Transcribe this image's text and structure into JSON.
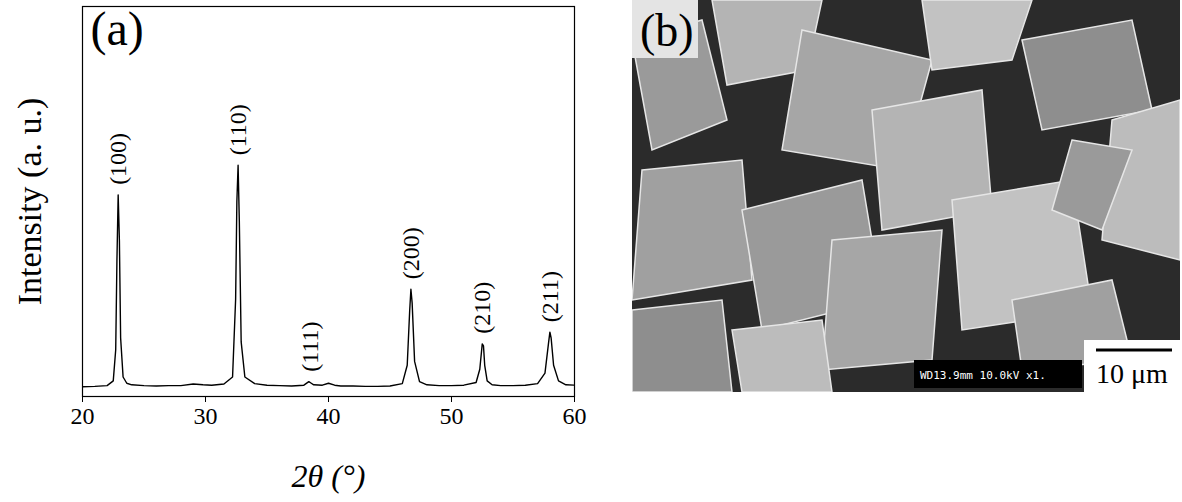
{
  "chart_data": {
    "type": "line",
    "title": "(a)",
    "x_label": "2θ (°)",
    "y_label": "Intensity (a. u.)",
    "x": [
      20,
      21,
      22,
      22.5,
      22.7,
      22.8,
      22.9,
      23.0,
      23.1,
      23.3,
      23.6,
      24,
      25,
      26,
      27,
      28,
      29,
      29.8,
      30.5,
      31.5,
      32.2,
      32.45,
      32.55,
      32.65,
      32.75,
      32.9,
      33.2,
      34,
      35,
      36,
      37,
      38,
      38.4,
      38.6,
      38.8,
      39.5,
      40,
      40.5,
      41,
      42,
      43,
      44,
      45,
      46,
      46.4,
      46.6,
      46.7,
      46.8,
      47.0,
      47.4,
      48,
      49,
      50,
      51,
      52,
      52.3,
      52.5,
      52.6,
      52.7,
      52.9,
      53.3,
      54,
      55,
      56,
      57,
      57.6,
      57.9,
      58.0,
      58.1,
      58.3,
      58.7,
      59.3,
      60
    ],
    "values": [
      2.5,
      2.6,
      2.8,
      4,
      12,
      35,
      51.7,
      40,
      15,
      5,
      3.4,
      3.0,
      2.8,
      2.7,
      2.8,
      2.8,
      3.2,
      3.0,
      2.9,
      3.2,
      5,
      25,
      50,
      59.3,
      45,
      14,
      5,
      3.3,
      2.9,
      2.8,
      2.7,
      2.9,
      3.8,
      3.4,
      3.0,
      2.9,
      3.4,
      2.9,
      2.7,
      2.7,
      2.6,
      2.6,
      2.7,
      3.3,
      8,
      22,
      27.5,
      24,
      9,
      3.8,
      3.0,
      2.8,
      2.8,
      2.9,
      3.6,
      7,
      13.5,
      13,
      8,
      4,
      3.0,
      2.8,
      2.8,
      2.9,
      3.3,
      6,
      14,
      16.5,
      15,
      8,
      4,
      3.0,
      2.9
    ],
    "color": "#000000",
    "xlim": [
      20,
      60
    ],
    "xticks": [
      20,
      30,
      40,
      50,
      60
    ],
    "ylim": [
      0,
      100
    ],
    "yticks": [],
    "tick_labels": "x",
    "annotations": [
      {
        "text": "(100)",
        "x": 22.9,
        "y": 51.7
      },
      {
        "text": "(110)",
        "x": 32.65,
        "y": 59.3
      },
      {
        "text": "(111)",
        "x": 38.5,
        "y": 3.8
      },
      {
        "text": "(200)",
        "x": 46.7,
        "y": 27.5
      },
      {
        "text": "(210)",
        "x": 52.5,
        "y": 13.5
      },
      {
        "text": "(211)",
        "x": 58.0,
        "y": 16.5
      }
    ]
  },
  "micrograph": {
    "label": "(b)",
    "info": "WD13.9mm 10.0kV x1.",
    "scale_bar": "10 μm"
  }
}
